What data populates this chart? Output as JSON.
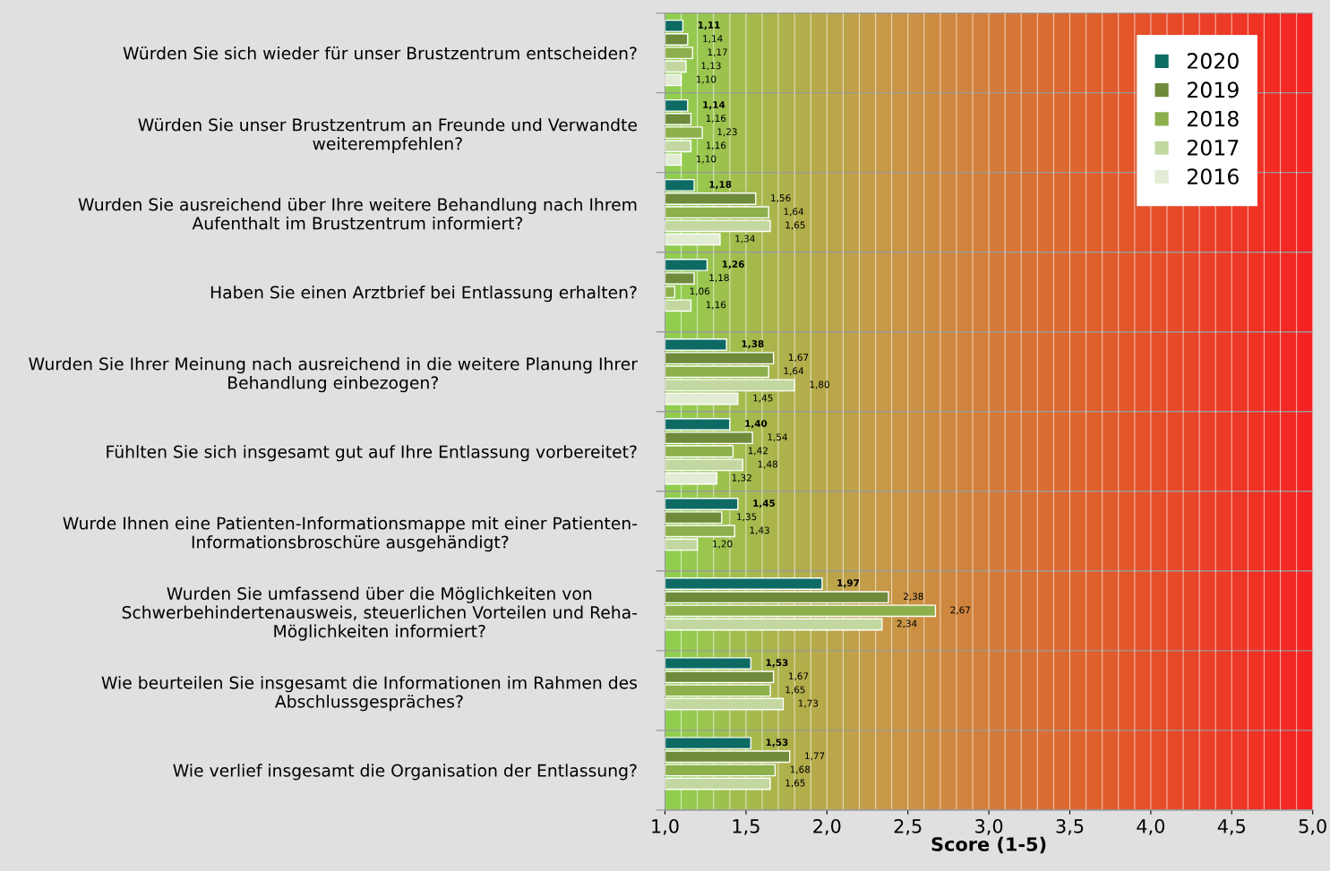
{
  "chart_data": {
    "type": "bar",
    "orientation": "horizontal",
    "xlabel": "Score (1-5)",
    "categories": [
      "Würden Sie sich wieder für unser Brustzentrum entscheiden?",
      "Würden Sie unser Brustzentrum an Freunde und Verwandte\nweiterempfehlen?",
      "Wurden Sie ausreichend über Ihre weitere Behandlung nach Ihrem\nAufenthalt im Brustzentrum informiert?",
      "Haben Sie einen Arztbrief bei Entlassung erhalten?",
      "Wurden Sie Ihrer Meinung nach ausreichend in die weitere Planung Ihrer\nBehandlung einbezogen?",
      "Fühlten Sie sich insgesamt gut auf Ihre Entlassung vorbereitet?",
      "Wurde Ihnen eine Patienten-Informationsmappe mit einer Patienten-\nInformationsbroschüre ausgehändigt?",
      "Wurden Sie umfassend über die Möglichkeiten von\nSchwerbehindertenausweis, steuerlichen Vorteilen und Reha-\nMöglichkeiten informiert?",
      "Wie beurteilen Sie insgesamt die Informationen im Rahmen des\nAbschlussgespräches?",
      "Wie verlief insgesamt die Organisation der Entlassung?"
    ],
    "series": [
      {
        "name": "2020",
        "color": "#0d6b63",
        "values": [
          1.11,
          1.14,
          1.18,
          1.26,
          1.38,
          1.4,
          1.45,
          1.97,
          1.53,
          1.53
        ],
        "value_labels": [
          "1,11",
          "1,14",
          "1,18",
          "1,26",
          "1,38",
          "1,40",
          "1,45",
          "1,97",
          "1,53",
          "1,53"
        ]
      },
      {
        "name": "2019",
        "color": "#6e8a3a",
        "values": [
          1.14,
          1.16,
          1.56,
          1.18,
          1.67,
          1.54,
          1.35,
          2.38,
          1.67,
          1.77
        ],
        "value_labels": [
          "1,14",
          "1,16",
          "1,56",
          "1,18",
          "1,67",
          "1,54",
          "1,35",
          "2,38",
          "1,67",
          "1,77"
        ]
      },
      {
        "name": "2018",
        "color": "#8db04c",
        "values": [
          1.17,
          1.23,
          1.64,
          1.06,
          1.64,
          1.42,
          1.43,
          2.67,
          1.65,
          1.68
        ],
        "value_labels": [
          "1,17",
          "1,23",
          "1,64",
          "1,06",
          "1,64",
          "1,42",
          "1,43",
          "2,67",
          "1,65",
          "1,68"
        ]
      },
      {
        "name": "2017",
        "color": "#c3d8a0",
        "values": [
          1.13,
          1.16,
          1.65,
          1.16,
          1.8,
          1.48,
          1.2,
          2.34,
          1.73,
          1.65
        ],
        "value_labels": [
          "1,13",
          "1,16",
          "1,65",
          "1,16",
          "1,80",
          "1,48",
          "1,20",
          "2,34",
          "1,73",
          "1,65"
        ]
      },
      {
        "name": "2016",
        "color": "#e2ecd4",
        "values": [
          1.1,
          1.1,
          1.34,
          null,
          1.45,
          1.32,
          null,
          null,
          null,
          null
        ],
        "value_labels": [
          "1,10",
          "1,10",
          "1,34",
          null,
          "1,45",
          "1,32",
          null,
          null,
          null,
          null
        ]
      }
    ],
    "xlim": [
      1.0,
      5.0
    ],
    "xticks": [
      {
        "value": 1.0,
        "label": "1,0"
      },
      {
        "value": 1.5,
        "label": "1,5"
      },
      {
        "value": 2.0,
        "label": "2,0"
      },
      {
        "value": 2.5,
        "label": "2,5"
      },
      {
        "value": 3.0,
        "label": "3,0"
      },
      {
        "value": 3.5,
        "label": "3,5"
      },
      {
        "value": 4.0,
        "label": "4,0"
      },
      {
        "value": 4.5,
        "label": "4,5"
      },
      {
        "value": 5.0,
        "label": "5,0"
      }
    ],
    "grid": "x",
    "legend": "top right"
  }
}
